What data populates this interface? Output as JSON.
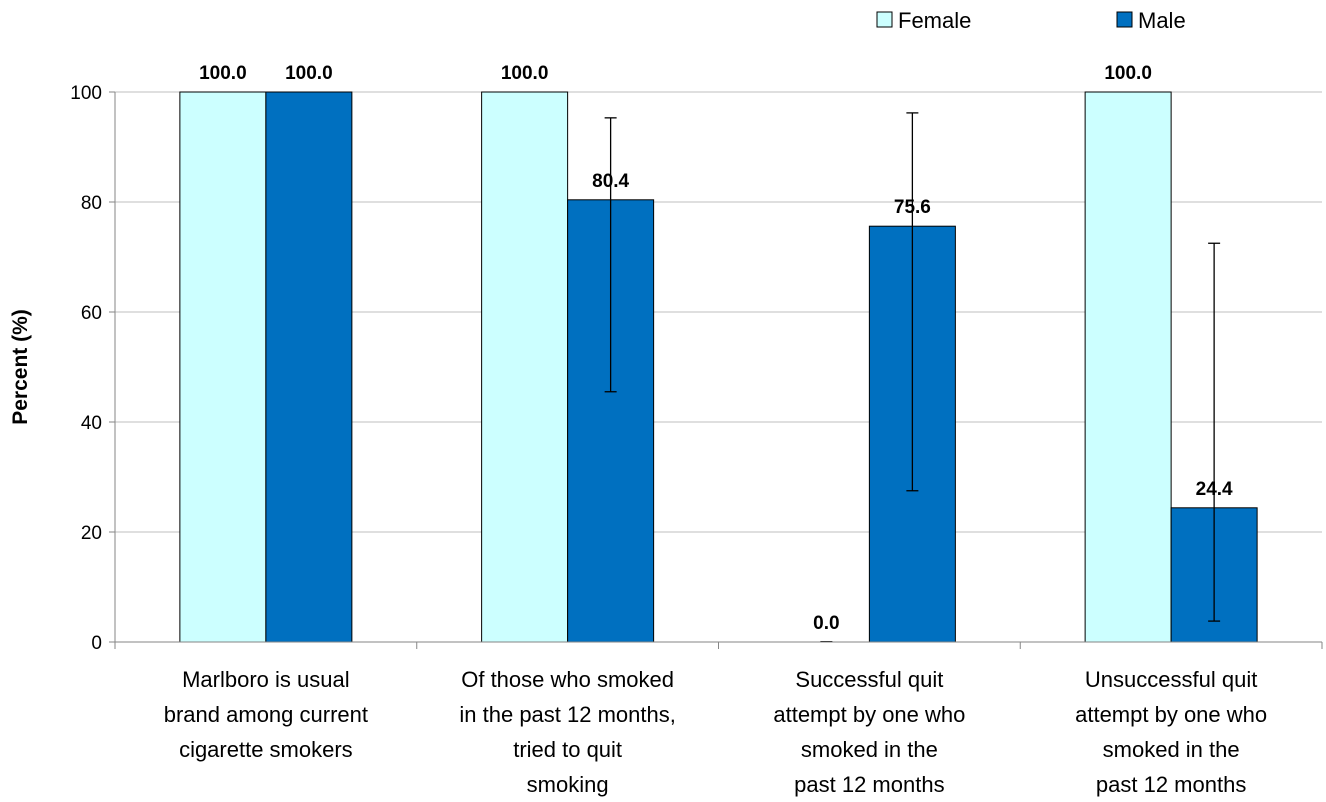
{
  "chart_data": {
    "type": "bar",
    "title": "",
    "xlabel": "",
    "ylabel": "Percent (%)",
    "ylim": [
      0,
      100
    ],
    "yticks": [
      0,
      20,
      40,
      60,
      80,
      100
    ],
    "grid": true,
    "legend_position": "top-right",
    "categories": [
      [
        "Marlboro is usual",
        "brand among current",
        "cigarette smokers"
      ],
      [
        "Of those who smoked",
        "in the past 12 months,",
        "tried to quit",
        "smoking"
      ],
      [
        "Successful quit",
        "attempt by one who",
        "smoked in the",
        "past 12 months"
      ],
      [
        "Unsuccessful quit",
        "attempt by one who",
        "smoked in the",
        "past 12 months"
      ]
    ],
    "series": [
      {
        "name": "Female",
        "color": "#ccffff",
        "values": [
          100.0,
          100.0,
          0.0,
          100.0
        ],
        "labels": [
          "100.0",
          "100.0",
          "0.0",
          "100.0"
        ],
        "error_low": [
          null,
          null,
          null,
          null
        ],
        "error_high": [
          null,
          null,
          null,
          null
        ]
      },
      {
        "name": "Male",
        "color": "#0070c0",
        "values": [
          100.0,
          80.4,
          75.6,
          24.4
        ],
        "labels": [
          "100.0",
          "80.4",
          "75.6",
          "24.4"
        ],
        "error_low": [
          null,
          45.5,
          27.5,
          3.8
        ],
        "error_high": [
          null,
          95.3,
          96.2,
          72.5
        ]
      }
    ]
  }
}
